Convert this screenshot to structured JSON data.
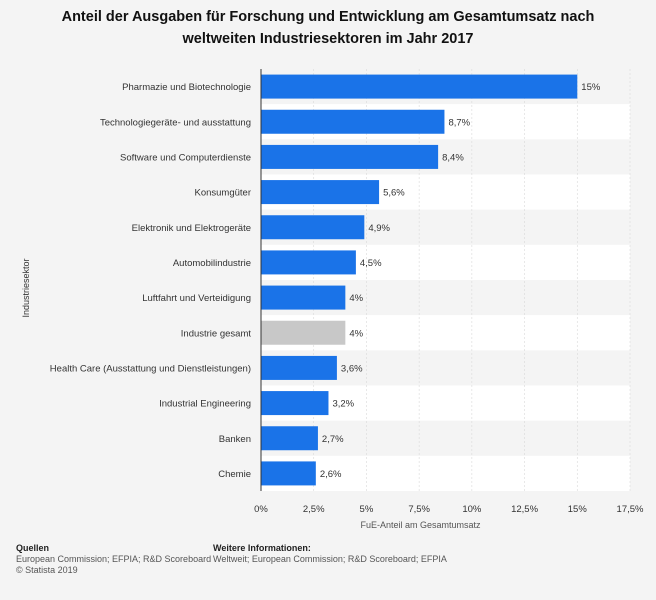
{
  "chart_data": {
    "type": "bar",
    "orientation": "horizontal",
    "title": "Anteil der Ausgaben für Forschung und Entwicklung am Gesamtumsatz nach weltweiten Industriesektoren im Jahr 2017",
    "ylabel": "Industriesektor",
    "xlabel": "FuE-Anteil am Gesamtumsatz",
    "xlim": [
      0,
      17.5
    ],
    "x_ticks": [
      {
        "value": 0,
        "label": "0%"
      },
      {
        "value": 2.5,
        "label": "2,5%"
      },
      {
        "value": 5,
        "label": "5%"
      },
      {
        "value": 7.5,
        "label": "7,5%"
      },
      {
        "value": 10,
        "label": "10%"
      },
      {
        "value": 12.5,
        "label": "12,5%"
      },
      {
        "value": 15,
        "label": "15%"
      },
      {
        "value": 17.5,
        "label": "17,5%"
      }
    ],
    "categories": [
      "Pharmazie und Biotechnologie",
      "Technologiegeräte- und ausstattung",
      "Software und Computerdienste",
      "Konsumgüter",
      "Elektronik und Elektrogeräte",
      "Automobilindustrie",
      "Luftfahrt und Verteidigung",
      "Industrie gesamt",
      "Health Care (Ausstattung und Dienstleistungen)",
      "Industrial Engineering",
      "Banken",
      "Chemie"
    ],
    "values": [
      15,
      8.7,
      8.4,
      5.6,
      4.9,
      4.5,
      4,
      4,
      3.6,
      3.2,
      2.7,
      2.6
    ],
    "value_labels": [
      "15%",
      "8,7%",
      "8,4%",
      "5,6%",
      "4,9%",
      "4,5%",
      "4%",
      "4%",
      "3,6%",
      "3,2%",
      "2,7%",
      "2,6%"
    ],
    "highlight_index": 7,
    "colors": {
      "bar": "#1a73e8",
      "highlight": "#c8c8c8",
      "stripe": "#ffffff",
      "background": "#f4f4f4",
      "grid": "#d9d9d9"
    }
  },
  "footer": {
    "sources_heading": "Quellen",
    "sources_text": "European Commission; EFPIA; R&D Scoreboard",
    "copyright": "© Statista 2019",
    "info_heading": "Weitere Informationen:",
    "info_text": "Weltweit; European Commission; R&D Scoreboard; EFPIA"
  }
}
